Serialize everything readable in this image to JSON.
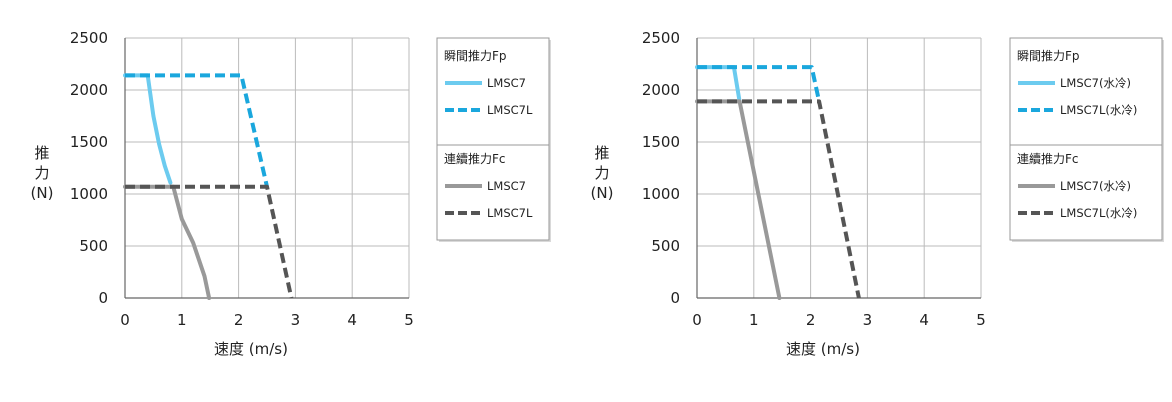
{
  "chart_data": [
    {
      "type": "line",
      "xlabel": "速度 (m/s)",
      "ylabel_lines": [
        "推",
        "力",
        "(N)"
      ],
      "xlim": [
        0,
        5
      ],
      "ylim": [
        0,
        2500
      ],
      "xticks": [
        "0",
        "1",
        "2",
        "3",
        "4",
        "5"
      ],
      "yticks": [
        "0",
        "500",
        "1000",
        "1500",
        "2000",
        "2500"
      ],
      "grid": true,
      "legend_position": "right",
      "legend_groups": [
        {
          "title": "瞬間推力Fp",
          "items": [
            "LMSC7",
            "LMSC7L"
          ]
        },
        {
          "title": "連續推力Fc",
          "items": [
            "LMSC7",
            "LMSC7L"
          ]
        }
      ],
      "series": [
        {
          "name": "LMSC7",
          "group": "瞬間推力Fp",
          "color": "#6ccbef",
          "dash": "solid",
          "points": [
            [
              0,
              2140
            ],
            [
              0.4,
              2140
            ],
            [
              0.5,
              1750
            ],
            [
              0.6,
              1480
            ],
            [
              0.7,
              1270
            ],
            [
              0.8,
              1110
            ]
          ]
        },
        {
          "name": "LMSC7L",
          "group": "瞬間推力Fp",
          "color": "#1aa7dd",
          "dash": "dashed",
          "points": [
            [
              0,
              2140
            ],
            [
              2.05,
              2140
            ],
            [
              2.5,
              1070
            ]
          ]
        },
        {
          "name": "LMSC7",
          "group": "連續推力Fc",
          "color": "#999999",
          "dash": "solid",
          "points": [
            [
              0,
              1070
            ],
            [
              0.85,
              1070
            ],
            [
              1.0,
              760
            ],
            [
              1.2,
              530
            ],
            [
              1.4,
              210
            ],
            [
              1.48,
              0
            ]
          ]
        },
        {
          "name": "LMSC7L",
          "group": "連續推力Fc",
          "color": "#555555",
          "dash": "dashed",
          "points": [
            [
              0,
              1070
            ],
            [
              2.5,
              1070
            ],
            [
              2.93,
              0
            ]
          ]
        }
      ]
    },
    {
      "type": "line",
      "xlabel": "速度 (m/s)",
      "ylabel_lines": [
        "推",
        "力",
        "(N)"
      ],
      "xlim": [
        0,
        5
      ],
      "ylim": [
        0,
        2500
      ],
      "xticks": [
        "0",
        "1",
        "2",
        "3",
        "4",
        "5"
      ],
      "yticks": [
        "0",
        "500",
        "1000",
        "1500",
        "2000",
        "2500"
      ],
      "grid": true,
      "legend_position": "right",
      "legend_groups": [
        {
          "title": "瞬間推力Fp",
          "items": [
            "LMSC7(水冷)",
            "LMSC7L(水冷)"
          ]
        },
        {
          "title": "連續推力Fc",
          "items": [
            "LMSC7(水冷)",
            "LMSC7L(水冷)"
          ]
        }
      ],
      "series": [
        {
          "name": "LMSC7(水冷)",
          "group": "瞬間推力Fp",
          "color": "#6ccbef",
          "dash": "solid",
          "points": [
            [
              0,
              2220
            ],
            [
              0.65,
              2220
            ],
            [
              0.75,
              1890
            ]
          ]
        },
        {
          "name": "LMSC7L(水冷)",
          "group": "瞬間推力Fp",
          "color": "#1aa7dd",
          "dash": "dashed",
          "points": [
            [
              0,
              2220
            ],
            [
              2.02,
              2220
            ],
            [
              2.15,
              1890
            ]
          ]
        },
        {
          "name": "LMSC7(水冷)",
          "group": "連續推力Fc",
          "color": "#999999",
          "dash": "solid",
          "points": [
            [
              0,
              1890
            ],
            [
              0.75,
              1890
            ],
            [
              1.45,
              0
            ]
          ]
        },
        {
          "name": "LMSC7L(水冷)",
          "group": "連續推力Fc",
          "color": "#555555",
          "dash": "dashed",
          "points": [
            [
              0,
              1890
            ],
            [
              2.15,
              1890
            ],
            [
              2.85,
              0
            ]
          ]
        }
      ]
    }
  ]
}
